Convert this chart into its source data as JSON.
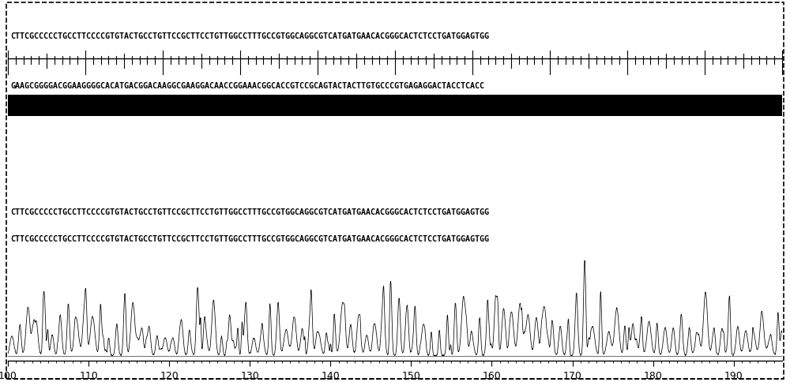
{
  "seq_line1": "CTTCGCCCCCTGCCTTCCCCGTGTACTGCCTGTTCCGCTTCCTGTTGGCCTTTGCCGTGGCAGGCGTCATGATGAACACGGGCACTCTCCTGATGGAGTGG",
  "seq_line2": "GAAGCGGGGACGGAAGGGGCACATGACGGACAAGGCGAAGGACAACCGGAAACGGCACCGTCCGCAGTACTACTTGTGCCCGTGAGAGGACTACCTCACC",
  "seq_line3": "CTTCGCCCCCTGCCTTCCCCGTGTACTGCCTGTTCCGCTTCCTGTTGGCCTTTGCCGTGGCAGGCGTCATGATGAACACGGGCACTCTCCTGATGGAGTGG",
  "seq_line4": "CTTCGCCCCCTGCCTTCCCCGTGTACTGCCTGTTCCGCTTCCTGTTGGCCTTTGCCGTGGCAGGCGTCATGATGAACACGGGCACTCTCCTGATGGAGTGG",
  "x_tick_start": 100,
  "x_tick_end": 195,
  "x_tick_step": 10,
  "bg_color": "#ffffff",
  "text_color": "#000000",
  "seq_fontsize": 7.2,
  "axis_fontsize": 9
}
